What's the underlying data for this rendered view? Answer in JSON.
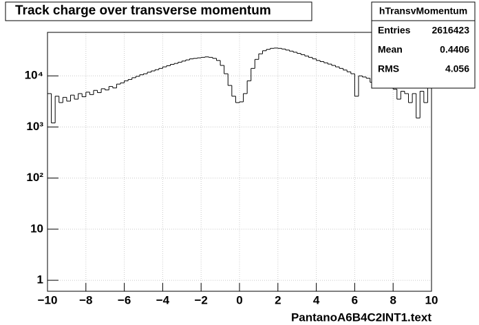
{
  "chart_data": {
    "type": "histogram",
    "title": "Track charge over transverse momentum",
    "xlabel": "PantanoA6B4C2INT1.text",
    "bins": [
      -10,
      -9.8,
      -9.6,
      -9.4,
      -9.2,
      -9,
      -8.8,
      -8.6,
      -8.4,
      -8.2,
      -8,
      -7.8,
      -7.6,
      -7.4,
      -7.2,
      -7,
      -6.8,
      -6.6,
      -6.4,
      -6.2,
      -6,
      -5.8,
      -5.6,
      -5.4,
      -5.2,
      -5,
      -4.8,
      -4.6,
      -4.4,
      -4.2,
      -4,
      -3.8,
      -3.6,
      -3.4,
      -3.2,
      -3,
      -2.8,
      -2.6,
      -2.4,
      -2.2,
      -2,
      -1.8,
      -1.6,
      -1.4,
      -1.2,
      -1,
      -0.8,
      -0.6,
      -0.4,
      -0.2,
      0,
      0.2,
      0.4,
      0.6,
      0.8,
      1,
      1.2,
      1.4,
      1.6,
      1.8,
      2,
      2.2,
      2.4,
      2.6,
      2.8,
      3,
      3.2,
      3.4,
      3.6,
      3.8,
      4,
      4.2,
      4.4,
      4.6,
      4.8,
      5,
      5.2,
      5.4,
      5.6,
      5.8,
      6,
      6.2,
      6.4,
      6.6,
      6.8,
      7,
      7.2,
      7.4,
      7.6,
      7.8,
      8,
      8.2,
      8.4,
      8.6,
      8.8,
      9,
      9.2,
      9.4,
      9.6,
      9.8,
      10
    ],
    "values": [
      4500,
      1200,
      4000,
      3000,
      3800,
      3200,
      4200,
      3500,
      4500,
      3900,
      4800,
      4300,
      5200,
      4700,
      5600,
      5300,
      6200,
      5800,
      6900,
      7300,
      8000,
      8500,
      9200,
      9800,
      10500,
      11000,
      11800,
      12500,
      13200,
      14000,
      15000,
      15800,
      16800,
      17500,
      18500,
      19500,
      20500,
      21500,
      22000,
      22500,
      23000,
      23500,
      23000,
      22000,
      20000,
      16000,
      11000,
      6500,
      4000,
      3000,
      3100,
      4500,
      8000,
      14000,
      21000,
      27000,
      31000,
      33000,
      34500,
      35000,
      34500,
      33500,
      32000,
      30500,
      29000,
      27500,
      26000,
      24500,
      23000,
      21500,
      20000,
      19000,
      18000,
      17000,
      16000,
      15000,
      14000,
      13000,
      12000,
      11000,
      4000,
      10000,
      9500,
      9000,
      7500,
      8500,
      6500,
      7000,
      6000,
      6500,
      5500,
      3500,
      5000,
      4500,
      3000,
      4500,
      1500,
      5000,
      3000,
      6000
    ],
    "color": "#000000",
    "xlim": [
      -10,
      10
    ],
    "ylim": [
      0.61,
      71000
    ],
    "log_y": true,
    "grid": true,
    "xticks": [
      {
        "value": -10,
        "label": "−10"
      },
      {
        "value": -8,
        "label": "−8"
      },
      {
        "value": -6,
        "label": "−6"
      },
      {
        "value": -4,
        "label": "−4"
      },
      {
        "value": -2,
        "label": "−2"
      },
      0,
      2,
      4,
      6,
      8,
      10
    ],
    "yticks": [
      1,
      10,
      {
        "value": 100,
        "label": "10²"
      },
      {
        "value": 1000,
        "label": "10³"
      },
      {
        "value": 10000,
        "label": "10⁴"
      }
    ],
    "stats": {
      "title": "hTransvMomentum",
      "rows": [
        {
          "label": "Entries",
          "value": 2616423
        },
        {
          "label": "Mean",
          "value": 0.4406
        },
        {
          "label": "RMS",
          "value": 4.056
        }
      ]
    }
  }
}
